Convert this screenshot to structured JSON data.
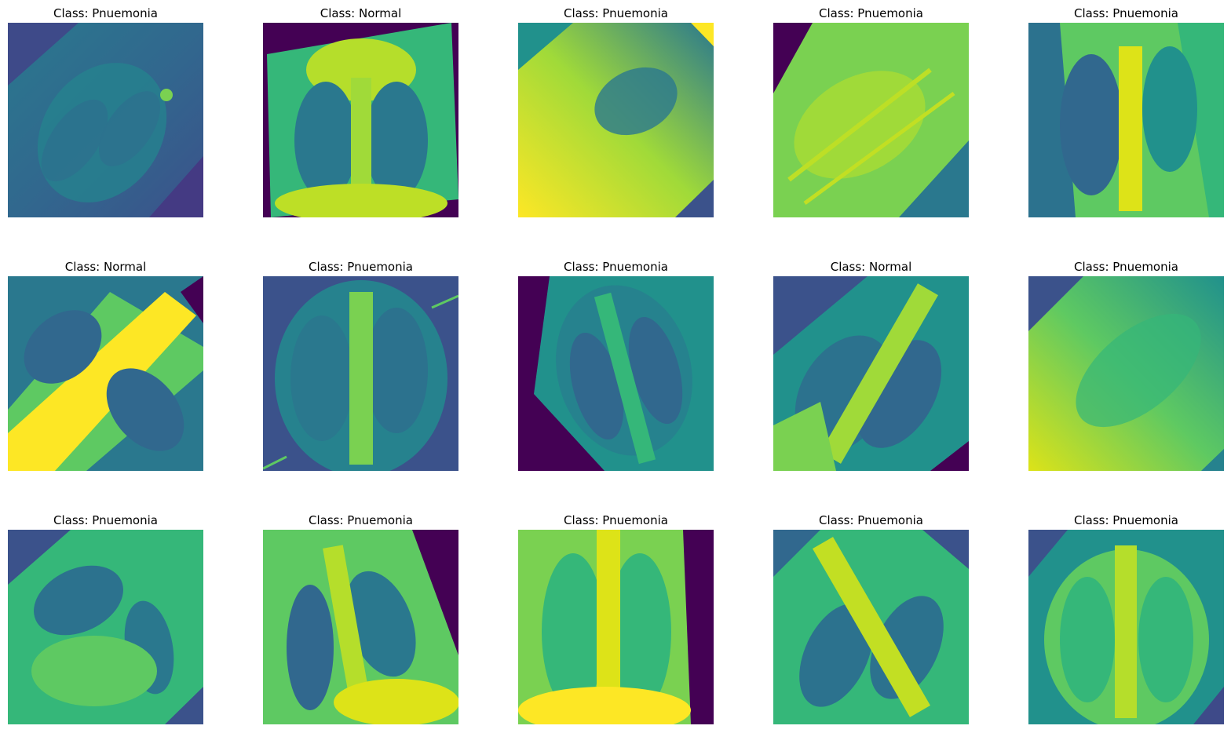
{
  "figure": {
    "panels": [
      {
        "title": "Class: Pnuemonia",
        "class": "Pnuemonia"
      },
      {
        "title": "Class: Normal",
        "class": "Normal"
      },
      {
        "title": "Class: Pnuemonia",
        "class": "Pnuemonia"
      },
      {
        "title": "Class: Pnuemonia",
        "class": "Pnuemonia"
      },
      {
        "title": "Class: Pnuemonia",
        "class": "Pnuemonia"
      },
      {
        "title": "Class: Normal",
        "class": "Normal"
      },
      {
        "title": "Class: Pnuemonia",
        "class": "Pnuemonia"
      },
      {
        "title": "Class: Pnuemonia",
        "class": "Pnuemonia"
      },
      {
        "title": "Class: Normal",
        "class": "Normal"
      },
      {
        "title": "Class: Pnuemonia",
        "class": "Pnuemonia"
      },
      {
        "title": "Class: Pnuemonia",
        "class": "Pnuemonia"
      },
      {
        "title": "Class: Pnuemonia",
        "class": "Pnuemonia"
      },
      {
        "title": "Class: Pnuemonia",
        "class": "Pnuemonia"
      },
      {
        "title": "Class: Pnuemonia",
        "class": "Pnuemonia"
      },
      {
        "title": "Class: Pnuemonia",
        "class": "Pnuemonia"
      }
    ]
  },
  "colormap": {
    "name": "viridis",
    "low": "#440154",
    "mid_low": "#3b528b",
    "mid": "#21918c",
    "mid_high": "#5ec962",
    "high": "#fde725"
  }
}
